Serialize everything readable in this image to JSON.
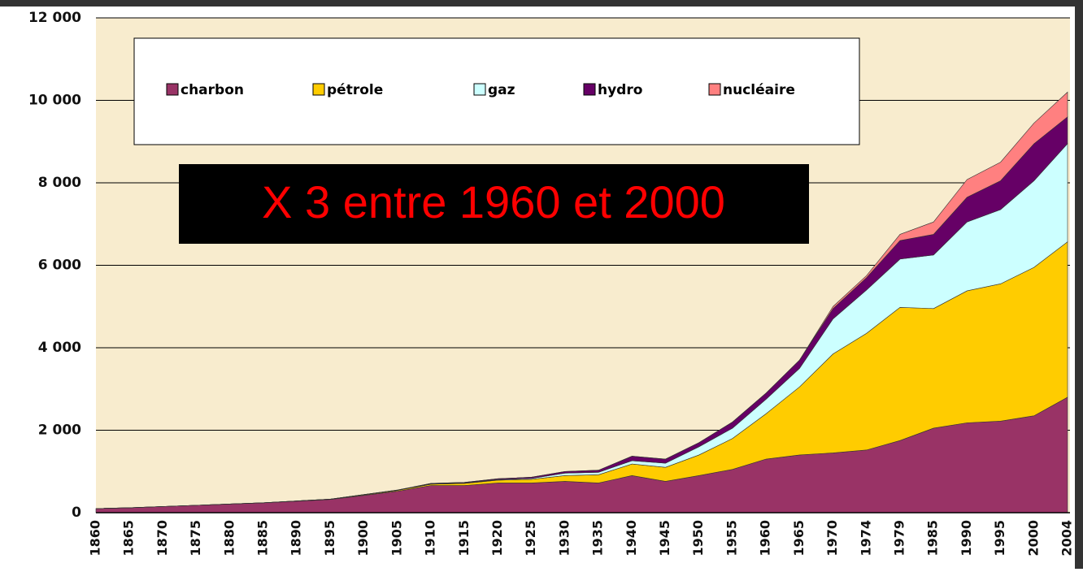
{
  "chart_data": {
    "type": "stacked-area",
    "annotation": "X 3 entre 1960 et 2000",
    "categories": [
      "1860",
      "1865",
      "1870",
      "1875",
      "1880",
      "1885",
      "1890",
      "1895",
      "1900",
      "1905",
      "1910",
      "1915",
      "1920",
      "1925",
      "1930",
      "1935",
      "1940",
      "1945",
      "1950",
      "1955",
      "1960",
      "1965",
      "1970",
      "1974",
      "1979",
      "1985",
      "1990",
      "1995",
      "2000",
      "2004"
    ],
    "series": [
      {
        "name": "charbon",
        "color": "#993366",
        "values": [
          100,
          120,
          150,
          180,
          210,
          240,
          280,
          320,
          420,
          520,
          660,
          660,
          720,
          720,
          760,
          720,
          900,
          760,
          900,
          1050,
          1300,
          1400,
          1450,
          1520,
          1750,
          2050,
          2180,
          2220,
          2350,
          2800
        ]
      },
      {
        "name": "pétrole",
        "color": "#ffcc00",
        "values": [
          0,
          0,
          0,
          0,
          0,
          0,
          5,
          10,
          15,
          20,
          30,
          50,
          70,
          90,
          140,
          200,
          280,
          340,
          500,
          750,
          1100,
          1650,
          2400,
          2830,
          3230,
          2900,
          3200,
          3330,
          3600,
          3770
        ]
      },
      {
        "name": "gaz",
        "color": "#ccffff",
        "values": [
          0,
          0,
          0,
          0,
          0,
          0,
          0,
          0,
          5,
          5,
          10,
          10,
          15,
          20,
          60,
          60,
          80,
          100,
          200,
          250,
          350,
          450,
          850,
          1050,
          1170,
          1300,
          1670,
          1800,
          2100,
          2380
        ]
      },
      {
        "name": "hydro",
        "color": "#660066",
        "values": [
          0,
          0,
          0,
          0,
          0,
          0,
          0,
          0,
          0,
          5,
          10,
          15,
          20,
          30,
          40,
          50,
          110,
          100,
          100,
          150,
          150,
          200,
          250,
          300,
          450,
          500,
          600,
          700,
          900,
          650
        ]
      },
      {
        "name": "nucléaire",
        "color": "#ff8080",
        "values": [
          0,
          0,
          0,
          0,
          0,
          0,
          0,
          0,
          0,
          0,
          0,
          0,
          0,
          0,
          0,
          0,
          0,
          0,
          0,
          0,
          0,
          0,
          50,
          50,
          150,
          300,
          430,
          450,
          500,
          600
        ]
      }
    ],
    "ylim": [
      0,
      12000
    ],
    "yticks": [
      0,
      {
        "value": 2000,
        "label": "2 000"
      },
      {
        "value": 4000,
        "label": "4 000"
      },
      {
        "value": 6000,
        "label": "6 000"
      },
      {
        "value": 8000,
        "label": "8 000"
      },
      {
        "value": 10000,
        "label": "10 000"
      },
      {
        "value": 12000,
        "label": "12 000"
      }
    ],
    "grid": true
  }
}
